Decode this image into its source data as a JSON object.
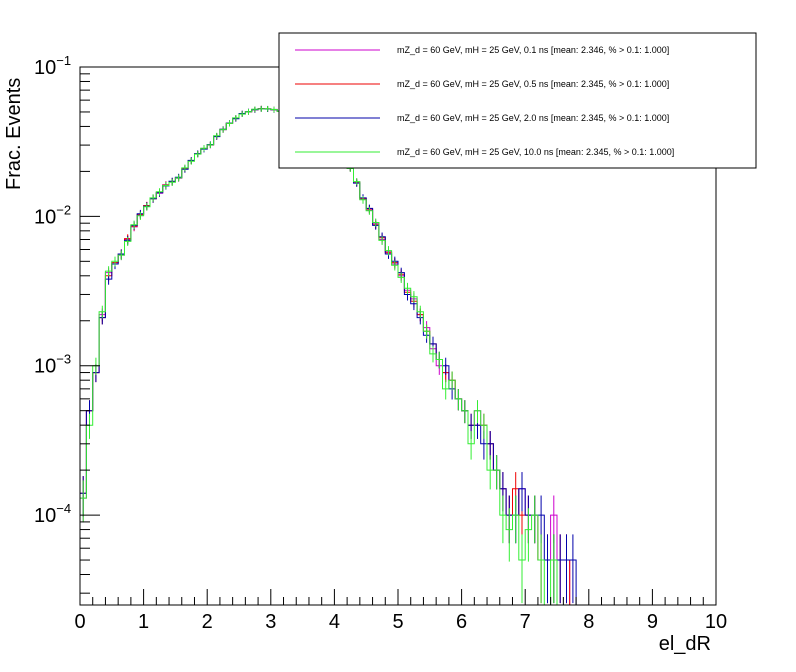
{
  "chart_data": {
    "type": "line",
    "title": "",
    "xlabel": "el_dR",
    "ylabel": "Frac. Events",
    "xlim": [
      0,
      10
    ],
    "ylim": [
      2.5e-05,
      0.1
    ],
    "yscale": "log",
    "grid": false,
    "legend_position": "top-right",
    "x_ticks": [
      "0",
      "1",
      "2",
      "3",
      "4",
      "5",
      "6",
      "7",
      "8",
      "9",
      "10"
    ],
    "y_ticks": [
      {
        "value": 0.0001,
        "base": "10",
        "exp": "−4"
      },
      {
        "value": 0.001,
        "base": "10",
        "exp": "−3"
      },
      {
        "value": 0.01,
        "base": "10",
        "exp": "−2"
      },
      {
        "value": 0.1,
        "base": "10",
        "exp": "−1"
      }
    ],
    "bin_edges_start": 0.0,
    "bin_width": 0.1,
    "series": [
      {
        "name": "mZ_d = 60 GeV, mH = 25 GeV, 0.1 ns [mean: 2.346, % > 0.1: 1.000]",
        "color": "#cc00cc",
        "values": [
          0.00013,
          0.0005,
          0.0009,
          0.0022,
          0.0042,
          0.0049,
          0.0055,
          0.007,
          0.0085,
          0.0102,
          0.0118,
          0.0132,
          0.0143,
          0.0163,
          0.017,
          0.018,
          0.021,
          0.0235,
          0.0262,
          0.0285,
          0.03,
          0.0345,
          0.038,
          0.042,
          0.0455,
          0.0485,
          0.05,
          0.052,
          0.0525,
          0.0525,
          0.052,
          0.0505,
          0.0485,
          0.047,
          0.046,
          0.045,
          0.043,
          0.04,
          0.037,
          0.033,
          0.029,
          0.0255,
          0.021,
          0.017,
          0.013,
          0.011,
          0.009,
          0.007,
          0.0058,
          0.0048,
          0.004,
          0.0032,
          0.0028,
          0.0022,
          0.0018,
          0.0013,
          0.001,
          0.0009,
          0.0008,
          0.0006,
          0.0005,
          0.0004,
          0.0005,
          0.0004,
          0.0003,
          0.0002,
          0.00015,
          0.0001,
          0.0001,
          0.00015,
          0.0001,
          0.0001,
          5e-05,
          5e-05,
          0.0001,
          5e-05,
          5e-05,
          0.0,
          0.0,
          0.0,
          0.0,
          0.0,
          0.0,
          0.0,
          0.0,
          0.0,
          0.0,
          0.0,
          0.0,
          0.0,
          0.0,
          0.0,
          0.0,
          0.0,
          0.0,
          0.0,
          0.0,
          0.0,
          0.0,
          0.0
        ]
      },
      {
        "name": "mZ_d = 60 GeV, mH = 25 GeV, 0.5 ns [mean: 2.345, % > 0.1: 1.000]",
        "color": "#ee0000",
        "values": [
          0.00014,
          0.0005,
          0.0009,
          0.0021,
          0.004,
          0.0049,
          0.0056,
          0.0071,
          0.0086,
          0.0103,
          0.0118,
          0.0131,
          0.0145,
          0.0162,
          0.0171,
          0.0182,
          0.0208,
          0.0236,
          0.0262,
          0.0283,
          0.0302,
          0.0343,
          0.0382,
          0.042,
          0.0452,
          0.0487,
          0.0502,
          0.0518,
          0.0527,
          0.0524,
          0.0518,
          0.0506,
          0.0487,
          0.0472,
          0.0461,
          0.0448,
          0.0428,
          0.0402,
          0.0372,
          0.0328,
          0.0292,
          0.0252,
          0.0212,
          0.0168,
          0.0132,
          0.0112,
          0.0088,
          0.0072,
          0.0057,
          0.0049,
          0.0041,
          0.0031,
          0.0027,
          0.0022,
          0.0017,
          0.0014,
          0.0011,
          0.0009,
          0.0008,
          0.0006,
          0.0005,
          0.0004,
          0.0004,
          0.0004,
          0.0003,
          0.0002,
          0.00015,
          0.0001,
          0.00015,
          0.0001,
          0.0001,
          0.0001,
          5e-05,
          5e-05,
          5e-05,
          5e-05,
          5e-05,
          0.0,
          0.0,
          0.0,
          0.0,
          0.0,
          0.0,
          0.0,
          0.0,
          0.0,
          0.0,
          0.0,
          0.0,
          0.0,
          0.0,
          0.0,
          0.0,
          0.0,
          0.0,
          0.0,
          0.0,
          0.0,
          0.0,
          0.0
        ]
      },
      {
        "name": "mZ_d = 60 GeV, mH = 25 GeV, 2.0 ns [mean: 2.345, % > 0.1: 1.000]",
        "color": "#0000aa",
        "values": [
          0.00014,
          0.0005,
          0.0009,
          0.0021,
          0.0038,
          0.0048,
          0.0056,
          0.0069,
          0.0087,
          0.0104,
          0.0117,
          0.0131,
          0.0144,
          0.016,
          0.0172,
          0.0183,
          0.0207,
          0.0237,
          0.0263,
          0.0282,
          0.0303,
          0.0342,
          0.0383,
          0.0421,
          0.0451,
          0.0488,
          0.0503,
          0.0517,
          0.0526,
          0.0523,
          0.0517,
          0.0507,
          0.0488,
          0.0473,
          0.046,
          0.0447,
          0.0427,
          0.0403,
          0.0373,
          0.0327,
          0.0293,
          0.0251,
          0.0213,
          0.0167,
          0.0133,
          0.0113,
          0.0087,
          0.0073,
          0.0056,
          0.005,
          0.0042,
          0.003,
          0.0026,
          0.0021,
          0.0016,
          0.0014,
          0.0011,
          0.001,
          0.0007,
          0.0006,
          0.0005,
          0.0004,
          0.0004,
          0.0003,
          0.0003,
          0.0002,
          0.00015,
          0.0001,
          0.0001,
          0.00015,
          0.0001,
          0.0001,
          0.0001,
          5e-05,
          5e-05,
          5e-05,
          5e-05,
          5e-05,
          0.0,
          0.0,
          0.0,
          0.0,
          0.0,
          0.0,
          0.0,
          0.0,
          0.0,
          0.0,
          0.0,
          0.0,
          0.0,
          0.0,
          0.0,
          0.0,
          0.0,
          0.0,
          0.0,
          0.0,
          0.0,
          0.0
        ]
      },
      {
        "name": "mZ_d = 60 GeV, mH = 25 GeV, 10.0 ns [mean: 2.345, % > 0.1: 1.000]",
        "color": "#33ee33",
        "values": [
          0.00013,
          0.0004,
          0.001,
          0.0023,
          0.0043,
          0.005,
          0.0055,
          0.0068,
          0.0088,
          0.0101,
          0.0116,
          0.0133,
          0.0146,
          0.0161,
          0.0169,
          0.0181,
          0.0211,
          0.0234,
          0.0261,
          0.0286,
          0.0301,
          0.0346,
          0.0381,
          0.0419,
          0.0456,
          0.0484,
          0.0501,
          0.0521,
          0.0524,
          0.0526,
          0.0519,
          0.0504,
          0.0486,
          0.0471,
          0.0459,
          0.0451,
          0.0431,
          0.0399,
          0.0371,
          0.0331,
          0.0289,
          0.0256,
          0.0209,
          0.0171,
          0.0129,
          0.0109,
          0.0091,
          0.0069,
          0.0059,
          0.0047,
          0.0039,
          0.0033,
          0.0029,
          0.0023,
          0.0017,
          0.0012,
          0.0011,
          0.0007,
          0.0008,
          0.0006,
          0.0005,
          0.0003,
          0.0005,
          0.0004,
          0.0002,
          0.0002,
          0.0001,
          8e-05,
          0.0001,
          5e-05,
          8e-05,
          0.0001,
          5e-05,
          0.0,
          5e-05,
          0.0,
          0.0,
          0.0,
          0.0,
          0.0,
          0.0,
          0.0,
          0.0,
          0.0,
          0.0,
          0.0,
          0.0,
          0.0,
          0.0,
          0.0,
          0.0,
          0.0,
          0.0,
          0.0,
          0.0,
          0.0,
          0.0,
          0.0,
          0.0,
          0.0
        ]
      }
    ]
  }
}
